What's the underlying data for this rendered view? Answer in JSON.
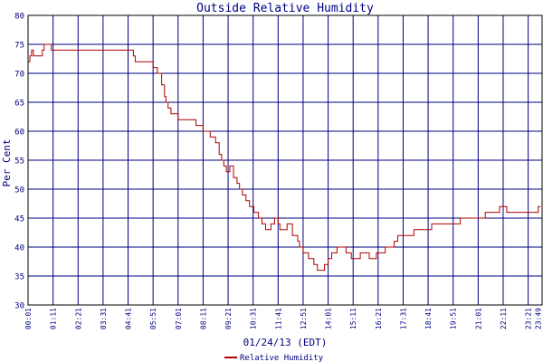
{
  "chart_data": {
    "type": "line",
    "title": "Outside Relative Humidity",
    "xlabel": "01/24/13 (EDT)",
    "ylabel": "Per Cent",
    "ylim": [
      30,
      80
    ],
    "y_ticks": [
      30,
      35,
      40,
      45,
      50,
      55,
      60,
      65,
      70,
      75,
      80
    ],
    "x_tick_labels": [
      "00:01",
      "01:11",
      "02:21",
      "03:31",
      "04:41",
      "05:51",
      "07:01",
      "08:11",
      "09:21",
      "10:31",
      "11:41",
      "12:51",
      "14:01",
      "15:11",
      "16:21",
      "17:31",
      "18:41",
      "19:51",
      "21:01",
      "22:11",
      "23:21",
      "23:49"
    ],
    "grid": true,
    "legend_position": "bottom-center",
    "colors": {
      "series": "#b00000",
      "grid": "#000080",
      "text": "#000080",
      "axis": "#000000"
    },
    "series": [
      {
        "name": "Relative Humidity",
        "x_minutes": [
          0,
          5,
          10,
          15,
          25,
          40,
          45,
          55,
          65,
          70,
          100,
          200,
          260,
          280,
          295,
          300,
          320,
          350,
          362,
          374,
          382,
          386,
          392,
          400,
          410,
          420,
          436,
          470,
          490,
          510,
          525,
          535,
          542,
          548,
          555,
          565,
          575,
          585,
          592,
          600,
          610,
          620,
          632,
          645,
          655,
          665,
          680,
          690,
          700,
          705,
          710,
          725,
          740,
          755,
          760,
          770,
          785,
          800,
          810,
          820,
          830,
          840,
          850,
          865,
          890,
          905,
          915,
          930,
          945,
          955,
          975,
          1000,
          1015,
          1025,
          1035,
          1060,
          1080,
          1090,
          1110,
          1130,
          1150,
          1180,
          1210,
          1240,
          1260,
          1280,
          1300,
          1320,
          1340,
          1360,
          1380,
          1400,
          1420,
          1428,
          1435
        ],
        "values": [
          72,
          73,
          74,
          73,
          73,
          74,
          75,
          75,
          74,
          74,
          74,
          74,
          74,
          74,
          73,
          72,
          72,
          71,
          70,
          68,
          66,
          65,
          64,
          63,
          63,
          62,
          62,
          61,
          60,
          59,
          58,
          56,
          55,
          54,
          53,
          54,
          52,
          51,
          50,
          49,
          48,
          47,
          46,
          45,
          44,
          43,
          44,
          45,
          44,
          43,
          43,
          44,
          42,
          41,
          40,
          39,
          38,
          37,
          36,
          36,
          37,
          38,
          39,
          40,
          39,
          38,
          38,
          39,
          39,
          38,
          39,
          40,
          40,
          41,
          42,
          42,
          43,
          43,
          43,
          44,
          44,
          44,
          45,
          45,
          45,
          46,
          46,
          47,
          46,
          46,
          46,
          46,
          46,
          47,
          47
        ]
      }
    ]
  }
}
